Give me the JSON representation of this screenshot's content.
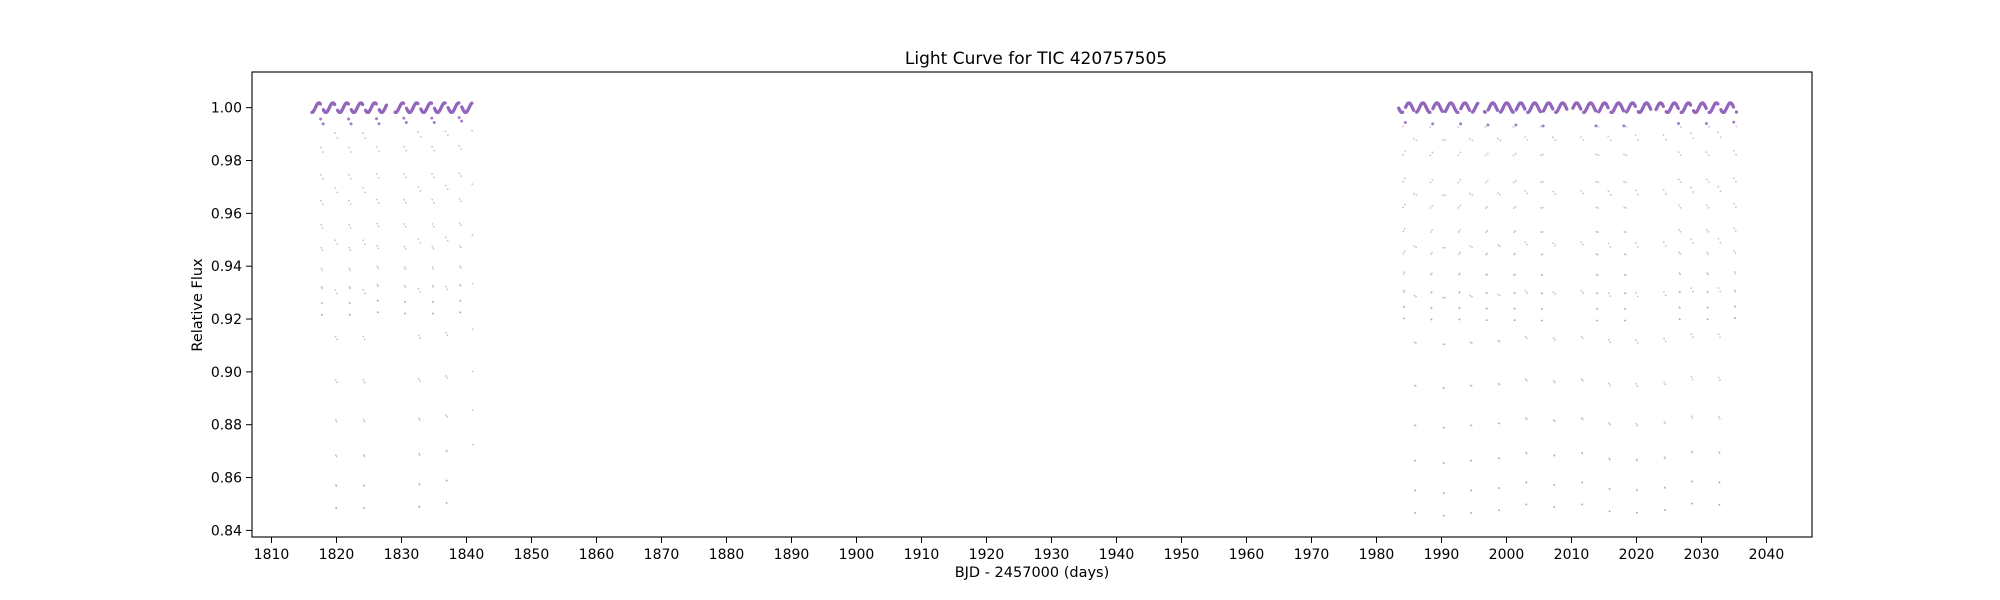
{
  "chart_data": {
    "type": "scatter",
    "title": "Light Curve for TIC 420757505",
    "xlabel": "BJD - 2457000 (days)",
    "ylabel": "Relative Flux",
    "xlim": [
      1807,
      2047
    ],
    "ylim": [
      0.8375,
      1.0135
    ],
    "xticks": [
      1810,
      1820,
      1830,
      1840,
      1850,
      1860,
      1870,
      1880,
      1890,
      1900,
      1910,
      1920,
      1930,
      1940,
      1950,
      1960,
      1970,
      1980,
      1990,
      2000,
      2010,
      2020,
      2030,
      2040
    ],
    "yticks": [
      0.84,
      0.86,
      0.88,
      0.9,
      0.92,
      0.94,
      0.96,
      0.98,
      1.0
    ],
    "ytick_labels": [
      "0.84",
      "0.86",
      "0.88",
      "0.90",
      "0.92",
      "0.94",
      "0.96",
      "0.98",
      "1.00"
    ],
    "grid": false,
    "marker_color": "#9467bd",
    "series": [
      {
        "segments": [
          [
            1816.2,
            1827.7
          ],
          [
            1829.0,
            1841.0
          ],
          [
            1983.4,
            1995.6
          ],
          [
            1996.6,
            2009.3
          ],
          [
            2010.2,
            2022.2
          ],
          [
            2023.0,
            2035.4
          ]
        ],
        "baseline": 1.0,
        "variability_amplitude": 0.0018,
        "variability_period_days": 2.15,
        "primary_eclipses": [
          {
            "t": 1819.95,
            "depth": 0.846
          },
          {
            "t": 1824.25,
            "depth": 0.846
          },
          {
            "t": 1832.75,
            "depth": 0.846
          },
          {
            "t": 1836.95,
            "depth": 0.847
          },
          {
            "t": 1841.05,
            "depth": 0.849
          },
          {
            "t": 1985.95,
            "depth": 0.846
          },
          {
            "t": 1990.35,
            "depth": 0.845
          },
          {
            "t": 1994.55,
            "depth": 0.846
          },
          {
            "t": 1998.85,
            "depth": 0.847
          },
          {
            "t": 2003.05,
            "depth": 0.849
          },
          {
            "t": 2007.35,
            "depth": 0.848
          },
          {
            "t": 2011.65,
            "depth": 0.849
          },
          {
            "t": 2015.85,
            "depth": 0.846
          },
          {
            "t": 2020.05,
            "depth": 0.845
          },
          {
            "t": 2024.35,
            "depth": 0.846
          },
          {
            "t": 2028.55,
            "depth": 0.848
          },
          {
            "t": 2032.75,
            "depth": 0.847
          }
        ],
        "secondary_eclipses": [
          {
            "t": 1817.75,
            "depth": 0.92
          },
          {
            "t": 1822.05,
            "depth": 0.92
          },
          {
            "t": 1826.35,
            "depth": 0.921
          },
          {
            "t": 1830.55,
            "depth": 0.92
          },
          {
            "t": 1834.85,
            "depth": 0.92
          },
          {
            "t": 1839.05,
            "depth": 0.92
          },
          {
            "t": 1984.25,
            "depth": 0.92
          },
          {
            "t": 1988.45,
            "depth": 0.92
          },
          {
            "t": 1992.75,
            "depth": 0.92
          },
          {
            "t": 1996.95,
            "depth": 0.92
          },
          {
            "t": 2001.25,
            "depth": 0.92
          },
          {
            "t": 2005.45,
            "depth": 0.92
          },
          {
            "t": 2009.75,
            "depth": 0.92
          },
          {
            "t": 2013.95,
            "depth": 0.92
          },
          {
            "t": 2018.25,
            "depth": 0.92
          },
          {
            "t": 2022.45,
            "depth": 0.92
          },
          {
            "t": 2026.65,
            "depth": 0.92
          },
          {
            "t": 2030.95,
            "depth": 0.92
          },
          {
            "t": 2035.15,
            "depth": 0.92
          }
        ]
      }
    ]
  }
}
